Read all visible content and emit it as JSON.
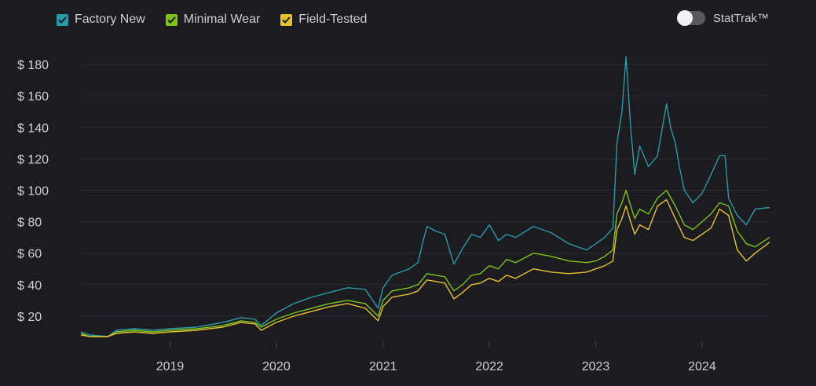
{
  "legend": {
    "items": [
      {
        "label": "Factory New",
        "color": "#2a9aa8"
      },
      {
        "label": "Minimal Wear",
        "color": "#7cc31c"
      },
      {
        "label": "Field-Tested",
        "color": "#e6c233"
      }
    ]
  },
  "toggle": {
    "label": "StatTrak™",
    "state": "off"
  },
  "chart_data": {
    "type": "line",
    "title": "",
    "xlabel": "",
    "ylabel": "",
    "y_prefix": "$ ",
    "ylim": [
      4,
      186
    ],
    "xlim": [
      "2018-03-01",
      "2024-08-20"
    ],
    "y_ticks": [
      20,
      40,
      60,
      80,
      100,
      120,
      140,
      160,
      180
    ],
    "x_ticks": [
      "2019",
      "2020",
      "2021",
      "2022",
      "2023",
      "2024"
    ],
    "grid": "horizontal",
    "legend_position": "top-left",
    "series": [
      {
        "name": "Factory New",
        "color": "#2a9aa8",
        "points": [
          [
            "2018-03-01",
            10
          ],
          [
            "2018-04-01",
            8
          ],
          [
            "2018-06-01",
            7
          ],
          [
            "2018-07-01",
            11
          ],
          [
            "2018-09-01",
            12
          ],
          [
            "2018-11-01",
            11
          ],
          [
            "2019-01-01",
            12
          ],
          [
            "2019-04-01",
            13
          ],
          [
            "2019-07-01",
            16
          ],
          [
            "2019-09-01",
            19
          ],
          [
            "2019-10-20",
            18
          ],
          [
            "2019-11-10",
            14
          ],
          [
            "2020-01-01",
            22
          ],
          [
            "2020-03-01",
            28
          ],
          [
            "2020-05-01",
            32
          ],
          [
            "2020-07-01",
            35
          ],
          [
            "2020-09-01",
            38
          ],
          [
            "2020-11-01",
            37
          ],
          [
            "2020-12-15",
            25
          ],
          [
            "2021-01-01",
            38
          ],
          [
            "2021-02-01",
            46
          ],
          [
            "2021-04-01",
            50
          ],
          [
            "2021-05-01",
            54
          ],
          [
            "2021-05-15",
            65
          ],
          [
            "2021-06-01",
            77
          ],
          [
            "2021-07-01",
            74
          ],
          [
            "2021-08-01",
            72
          ],
          [
            "2021-09-01",
            53
          ],
          [
            "2021-10-01",
            63
          ],
          [
            "2021-11-01",
            72
          ],
          [
            "2021-12-01",
            70
          ],
          [
            "2022-01-01",
            78
          ],
          [
            "2022-02-01",
            68
          ],
          [
            "2022-03-01",
            72
          ],
          [
            "2022-04-01",
            70
          ],
          [
            "2022-06-01",
            77
          ],
          [
            "2022-08-01",
            73
          ],
          [
            "2022-10-01",
            66
          ],
          [
            "2022-12-01",
            62
          ],
          [
            "2023-01-01",
            66
          ],
          [
            "2023-02-01",
            70
          ],
          [
            "2023-03-01",
            76
          ],
          [
            "2023-03-15",
            130
          ],
          [
            "2023-04-01",
            150
          ],
          [
            "2023-04-15",
            185
          ],
          [
            "2023-05-01",
            140
          ],
          [
            "2023-05-15",
            110
          ],
          [
            "2023-06-01",
            128
          ],
          [
            "2023-07-01",
            115
          ],
          [
            "2023-08-01",
            122
          ],
          [
            "2023-09-01",
            155
          ],
          [
            "2023-09-15",
            140
          ],
          [
            "2023-10-01",
            130
          ],
          [
            "2023-10-15",
            115
          ],
          [
            "2023-11-01",
            100
          ],
          [
            "2023-12-01",
            92
          ],
          [
            "2024-01-01",
            98
          ],
          [
            "2024-02-01",
            110
          ],
          [
            "2024-03-01",
            122
          ],
          [
            "2024-03-20",
            122
          ],
          [
            "2024-04-01",
            95
          ],
          [
            "2024-05-01",
            84
          ],
          [
            "2024-06-01",
            78
          ],
          [
            "2024-07-01",
            88
          ],
          [
            "2024-08-20",
            89
          ]
        ]
      },
      {
        "name": "Minimal Wear",
        "color": "#7cc31c",
        "points": [
          [
            "2018-03-01",
            9
          ],
          [
            "2018-04-01",
            7
          ],
          [
            "2018-06-01",
            7
          ],
          [
            "2018-07-01",
            10
          ],
          [
            "2018-09-01",
            11
          ],
          [
            "2018-11-01",
            10
          ],
          [
            "2019-01-01",
            11
          ],
          [
            "2019-04-01",
            12
          ],
          [
            "2019-07-01",
            14
          ],
          [
            "2019-09-01",
            17
          ],
          [
            "2019-10-20",
            16
          ],
          [
            "2019-11-10",
            13
          ],
          [
            "2020-01-01",
            18
          ],
          [
            "2020-03-01",
            22
          ],
          [
            "2020-05-01",
            25
          ],
          [
            "2020-07-01",
            28
          ],
          [
            "2020-09-01",
            30
          ],
          [
            "2020-11-01",
            28
          ],
          [
            "2020-12-15",
            20
          ],
          [
            "2021-01-01",
            30
          ],
          [
            "2021-02-01",
            36
          ],
          [
            "2021-04-01",
            38
          ],
          [
            "2021-05-01",
            40
          ],
          [
            "2021-06-01",
            47
          ],
          [
            "2021-07-01",
            46
          ],
          [
            "2021-08-01",
            45
          ],
          [
            "2021-09-01",
            36
          ],
          [
            "2021-10-01",
            40
          ],
          [
            "2021-11-01",
            46
          ],
          [
            "2021-12-01",
            47
          ],
          [
            "2022-01-01",
            52
          ],
          [
            "2022-02-01",
            50
          ],
          [
            "2022-03-01",
            56
          ],
          [
            "2022-04-01",
            54
          ],
          [
            "2022-06-01",
            60
          ],
          [
            "2022-08-01",
            58
          ],
          [
            "2022-10-01",
            55
          ],
          [
            "2022-12-01",
            54
          ],
          [
            "2023-01-01",
            55
          ],
          [
            "2023-02-01",
            58
          ],
          [
            "2023-03-01",
            62
          ],
          [
            "2023-03-15",
            85
          ],
          [
            "2023-04-01",
            92
          ],
          [
            "2023-04-15",
            100
          ],
          [
            "2023-05-01",
            90
          ],
          [
            "2023-05-15",
            82
          ],
          [
            "2023-06-01",
            88
          ],
          [
            "2023-07-01",
            85
          ],
          [
            "2023-08-01",
            95
          ],
          [
            "2023-09-01",
            100
          ],
          [
            "2023-10-01",
            90
          ],
          [
            "2023-11-01",
            78
          ],
          [
            "2023-12-01",
            75
          ],
          [
            "2024-01-01",
            80
          ],
          [
            "2024-02-01",
            85
          ],
          [
            "2024-03-01",
            92
          ],
          [
            "2024-04-01",
            90
          ],
          [
            "2024-05-01",
            74
          ],
          [
            "2024-06-01",
            66
          ],
          [
            "2024-07-01",
            64
          ],
          [
            "2024-08-20",
            70
          ]
        ]
      },
      {
        "name": "Field-Tested",
        "color": "#e6c233",
        "points": [
          [
            "2018-03-01",
            8
          ],
          [
            "2018-04-01",
            7
          ],
          [
            "2018-06-01",
            7
          ],
          [
            "2018-07-01",
            9
          ],
          [
            "2018-09-01",
            10
          ],
          [
            "2018-11-01",
            9
          ],
          [
            "2019-01-01",
            10
          ],
          [
            "2019-04-01",
            11
          ],
          [
            "2019-07-01",
            13
          ],
          [
            "2019-09-01",
            16
          ],
          [
            "2019-10-20",
            15
          ],
          [
            "2019-11-10",
            11
          ],
          [
            "2020-01-01",
            16
          ],
          [
            "2020-03-01",
            20
          ],
          [
            "2020-05-01",
            23
          ],
          [
            "2020-07-01",
            26
          ],
          [
            "2020-09-01",
            28
          ],
          [
            "2020-11-01",
            25
          ],
          [
            "2020-12-15",
            17
          ],
          [
            "2021-01-01",
            26
          ],
          [
            "2021-02-01",
            32
          ],
          [
            "2021-04-01",
            34
          ],
          [
            "2021-05-01",
            36
          ],
          [
            "2021-06-01",
            43
          ],
          [
            "2021-07-01",
            42
          ],
          [
            "2021-08-01",
            41
          ],
          [
            "2021-09-01",
            31
          ],
          [
            "2021-10-01",
            35
          ],
          [
            "2021-11-01",
            40
          ],
          [
            "2021-12-01",
            41
          ],
          [
            "2022-01-01",
            44
          ],
          [
            "2022-02-01",
            42
          ],
          [
            "2022-03-01",
            46
          ],
          [
            "2022-04-01",
            44
          ],
          [
            "2022-06-01",
            50
          ],
          [
            "2022-08-01",
            48
          ],
          [
            "2022-10-01",
            47
          ],
          [
            "2022-12-01",
            48
          ],
          [
            "2023-01-01",
            50
          ],
          [
            "2023-02-01",
            52
          ],
          [
            "2023-03-01",
            55
          ],
          [
            "2023-03-15",
            75
          ],
          [
            "2023-04-01",
            82
          ],
          [
            "2023-04-15",
            90
          ],
          [
            "2023-05-01",
            80
          ],
          [
            "2023-05-15",
            72
          ],
          [
            "2023-06-01",
            78
          ],
          [
            "2023-07-01",
            75
          ],
          [
            "2023-08-01",
            90
          ],
          [
            "2023-09-01",
            94
          ],
          [
            "2023-10-01",
            82
          ],
          [
            "2023-11-01",
            70
          ],
          [
            "2023-12-01",
            68
          ],
          [
            "2024-01-01",
            72
          ],
          [
            "2024-02-01",
            76
          ],
          [
            "2024-03-01",
            88
          ],
          [
            "2024-04-01",
            84
          ],
          [
            "2024-05-01",
            62
          ],
          [
            "2024-06-01",
            55
          ],
          [
            "2024-07-01",
            60
          ],
          [
            "2024-08-20",
            67
          ]
        ]
      }
    ]
  }
}
